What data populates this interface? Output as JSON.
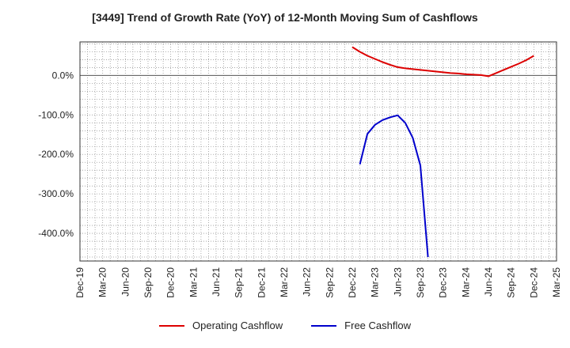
{
  "chart_data": {
    "type": "line",
    "title": "[3449]  Trend of Growth Rate (YoY) of 12-Month Moving Sum of Cashflows",
    "xlabel": "",
    "ylabel": "",
    "x_ticks": [
      "Dec-19",
      "Mar-20",
      "Jun-20",
      "Sep-20",
      "Dec-20",
      "Mar-21",
      "Jun-21",
      "Sep-21",
      "Dec-21",
      "Mar-22",
      "Jun-22",
      "Sep-22",
      "Dec-22",
      "Mar-23",
      "Jun-23",
      "Sep-23",
      "Dec-23",
      "Mar-24",
      "Jun-24",
      "Sep-24",
      "Dec-24",
      "Mar-25"
    ],
    "y_ticks": [
      0,
      -100,
      -200,
      -300,
      -400
    ],
    "y_tick_labels": [
      "0.0%",
      "-100.0%",
      "-200.0%",
      "-300.0%",
      "-400.0%"
    ],
    "ylim": [
      -470,
      85
    ],
    "grid": true,
    "legend_position": "bottom",
    "series": [
      {
        "name": "Operating Cashflow",
        "color": "#dd0000",
        "x": [
          "Dec-22",
          "Jan-23",
          "Feb-23",
          "Mar-23",
          "Apr-23",
          "May-23",
          "Jun-23",
          "Jul-23",
          "Aug-23",
          "Sep-23",
          "Oct-23",
          "Nov-23",
          "Dec-23",
          "Jan-24",
          "Feb-24",
          "Mar-24",
          "Apr-24",
          "May-24",
          "Jun-24",
          "Jul-24",
          "Aug-24",
          "Sep-24",
          "Oct-24",
          "Nov-24",
          "Dec-24"
        ],
        "values": [
          72,
          60,
          50,
          42,
          34,
          27,
          21,
          18,
          16,
          14,
          12,
          10,
          8,
          6,
          5,
          3,
          2,
          1,
          -2,
          6,
          14,
          22,
          30,
          39,
          50
        ]
      },
      {
        "name": "Free Cashflow",
        "color": "#0000cc",
        "x": [
          "Jan-23",
          "Feb-23",
          "Mar-23",
          "Apr-23",
          "May-23",
          "Jun-23",
          "Jul-23",
          "Aug-23",
          "Sep-23",
          "Oct-23"
        ],
        "values": [
          -225,
          -148,
          -125,
          -113,
          -106,
          -101,
          -120,
          -158,
          -228,
          -460
        ]
      }
    ]
  }
}
